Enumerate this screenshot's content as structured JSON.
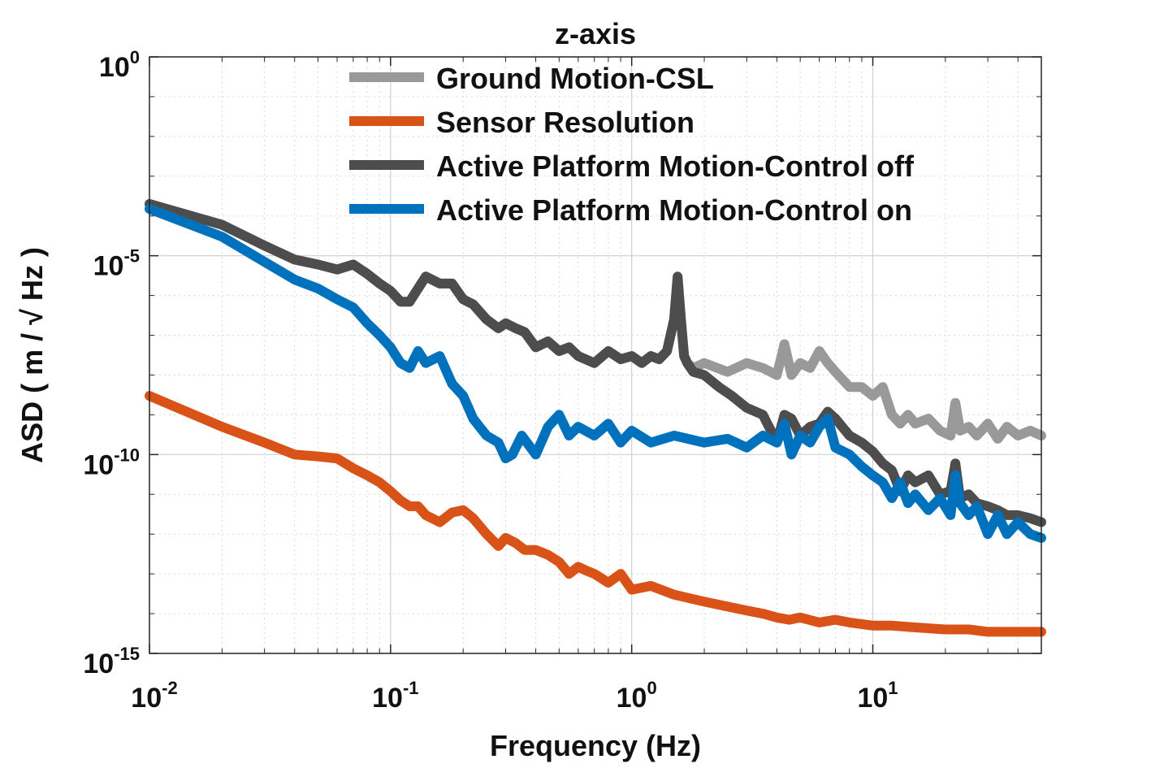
{
  "chart_data": {
    "type": "line",
    "title": "z-axis",
    "xlabel": "Frequency (Hz)",
    "ylabel": "ASD ( m / √ Hz )",
    "xscale": "log",
    "yscale": "log",
    "xlim": [
      0.01,
      50
    ],
    "ylim": [
      1e-15,
      1
    ],
    "grid": true,
    "legend_position": "top-center",
    "x_ticks": [
      {
        "value": 0.01,
        "base": "10",
        "exp": "-2"
      },
      {
        "value": 0.1,
        "base": "10",
        "exp": "-1"
      },
      {
        "value": 1,
        "base": "10",
        "exp": "0"
      },
      {
        "value": 10,
        "base": "10",
        "exp": "1"
      }
    ],
    "y_ticks": [
      {
        "value": 1,
        "base": "10",
        "exp": "0"
      },
      {
        "value": 1e-05,
        "base": "10",
        "exp": "-5"
      },
      {
        "value": 1e-10,
        "base": "10",
        "exp": "-10"
      },
      {
        "value": 1e-15,
        "base": "10",
        "exp": "-15"
      }
    ],
    "series": [
      {
        "name": "Ground Motion-CSL",
        "color": "#999999",
        "x": [
          0.01,
          0.02,
          0.03,
          0.04,
          0.05,
          0.06,
          0.07,
          0.08,
          0.09,
          0.1,
          0.11,
          0.12,
          0.13,
          0.14,
          0.16,
          0.18,
          0.2,
          0.22,
          0.25,
          0.28,
          0.3,
          0.33,
          0.36,
          0.4,
          0.45,
          0.5,
          0.55,
          0.6,
          0.7,
          0.8,
          0.9,
          1.0,
          1.1,
          1.2,
          1.3,
          1.4,
          1.5,
          1.55,
          1.6,
          1.65,
          1.7,
          1.8,
          2.0,
          2.5,
          3.0,
          3.5,
          4.0,
          4.3,
          4.6,
          5.0,
          5.5,
          6.0,
          6.5,
          7.0,
          8.0,
          9.0,
          10.0,
          11.0,
          12.0,
          13.0,
          14.0,
          15.0,
          17.0,
          19.0,
          21.0,
          22.0,
          23.0,
          25.0,
          27.0,
          30.0,
          33.0,
          36.0,
          40.0,
          45.0,
          50.0
        ],
        "y": [
          0.0002,
          6e-05,
          1.8e-05,
          8e-06,
          6e-06,
          4.5e-06,
          6e-06,
          3.5e-06,
          2e-06,
          1.3e-06,
          7e-07,
          7e-07,
          1.5e-06,
          3e-06,
          2e-06,
          2e-06,
          8e-07,
          6e-07,
          2.5e-07,
          1.5e-07,
          2e-07,
          1.5e-07,
          1.2e-07,
          5e-08,
          7e-08,
          4e-08,
          5e-08,
          3e-08,
          2e-08,
          4e-08,
          2.5e-08,
          3e-08,
          2e-08,
          3e-08,
          2.5e-08,
          4e-08,
          2.5e-07,
          3e-06,
          2.5e-07,
          3e-08,
          2e-08,
          1.5e-08,
          2e-08,
          1.2e-08,
          2e-08,
          1.5e-08,
          1e-08,
          6e-08,
          1e-08,
          2e-08,
          1.5e-08,
          4e-08,
          2e-08,
          1.2e-08,
          5e-09,
          5e-09,
          3e-09,
          5e-09,
          1e-09,
          6e-10,
          1e-09,
          6e-10,
          8e-10,
          4e-10,
          3e-10,
          2e-09,
          4e-10,
          5e-10,
          3e-10,
          6e-10,
          2.5e-10,
          5e-10,
          3e-10,
          4e-10,
          3e-10
        ]
      },
      {
        "name": "Sensor Resolution",
        "color": "#D95319",
        "x": [
          0.01,
          0.02,
          0.03,
          0.04,
          0.05,
          0.06,
          0.07,
          0.08,
          0.09,
          0.1,
          0.11,
          0.12,
          0.13,
          0.14,
          0.16,
          0.18,
          0.2,
          0.22,
          0.25,
          0.28,
          0.3,
          0.33,
          0.36,
          0.4,
          0.45,
          0.5,
          0.55,
          0.6,
          0.65,
          0.7,
          0.8,
          0.9,
          1.0,
          1.2,
          1.5,
          2.0,
          2.5,
          3.0,
          3.5,
          4.0,
          4.5,
          5.0,
          6.0,
          7.0,
          8.0,
          10.0,
          12.0,
          15.0,
          20.0,
          25.0,
          30.0,
          40.0,
          50.0
        ],
        "y": [
          3e-09,
          5e-10,
          2e-10,
          1e-10,
          9e-11,
          8e-11,
          4.5e-11,
          3e-11,
          2e-11,
          1.2e-11,
          7e-12,
          5e-12,
          5e-12,
          3e-12,
          2e-12,
          3.5e-12,
          4e-12,
          2.5e-12,
          1e-12,
          5e-13,
          8e-13,
          6e-13,
          4e-13,
          4e-13,
          3e-13,
          2e-13,
          1e-13,
          1.5e-13,
          1.2e-13,
          1e-13,
          6e-14,
          1e-13,
          4e-14,
          5e-14,
          3e-14,
          2e-14,
          1.5e-14,
          1.2e-14,
          1e-14,
          8e-15,
          7e-15,
          8e-15,
          6e-15,
          7e-15,
          6e-15,
          5e-15,
          5e-15,
          4.5e-15,
          4e-15,
          4e-15,
          3.5e-15,
          3.5e-15,
          3.5e-15
        ]
      },
      {
        "name": "Active Platform Motion-Control off",
        "color": "#4D4D4D",
        "x": [
          0.01,
          0.02,
          0.03,
          0.04,
          0.05,
          0.06,
          0.07,
          0.08,
          0.09,
          0.1,
          0.11,
          0.12,
          0.13,
          0.14,
          0.16,
          0.18,
          0.2,
          0.22,
          0.25,
          0.28,
          0.3,
          0.33,
          0.36,
          0.4,
          0.45,
          0.5,
          0.55,
          0.6,
          0.7,
          0.8,
          0.9,
          1.0,
          1.1,
          1.2,
          1.3,
          1.4,
          1.5,
          1.55,
          1.6,
          1.65,
          1.7,
          1.8,
          2.0,
          2.3,
          2.6,
          3.0,
          3.5,
          4.0,
          4.3,
          4.6,
          5.0,
          5.5,
          6.0,
          6.5,
          7.0,
          8.0,
          9.0,
          10.0,
          11.0,
          12.0,
          13.0,
          14.0,
          15.0,
          17.0,
          19.0,
          21.0,
          22.0,
          23.0,
          25.0,
          27.0,
          30.0,
          33.0,
          36.0,
          40.0,
          45.0,
          50.0
        ],
        "y": [
          0.0002,
          6e-05,
          1.8e-05,
          8e-06,
          6e-06,
          4.5e-06,
          6e-06,
          3.5e-06,
          2e-06,
          1.3e-06,
          7e-07,
          7e-07,
          1.5e-06,
          3e-06,
          2e-06,
          2e-06,
          8e-07,
          6e-07,
          2.5e-07,
          1.5e-07,
          2e-07,
          1.5e-07,
          1.2e-07,
          5e-08,
          7e-08,
          4e-08,
          5e-08,
          3e-08,
          2e-08,
          4e-08,
          2.5e-08,
          3e-08,
          2e-08,
          3e-08,
          2.5e-08,
          4e-08,
          2.5e-07,
          3e-06,
          2.5e-07,
          3e-08,
          2e-08,
          1.2e-08,
          1e-08,
          5e-09,
          3e-09,
          1.5e-09,
          1e-09,
          2e-10,
          1e-09,
          8e-10,
          3e-10,
          5e-10,
          6e-10,
          1.2e-09,
          8e-10,
          3e-10,
          2e-10,
          1.2e-10,
          6e-11,
          4e-11,
          1.2e-11,
          3e-11,
          2e-11,
          3e-11,
          1e-11,
          1.2e-11,
          6e-11,
          8e-12,
          1e-11,
          6e-12,
          5e-12,
          4e-12,
          3e-12,
          3e-12,
          2.5e-12,
          2e-12
        ]
      },
      {
        "name": "Active Platform Motion-Control on",
        "color": "#0072BD",
        "x": [
          0.01,
          0.02,
          0.03,
          0.04,
          0.05,
          0.06,
          0.07,
          0.08,
          0.09,
          0.1,
          0.11,
          0.12,
          0.13,
          0.14,
          0.16,
          0.18,
          0.2,
          0.22,
          0.25,
          0.28,
          0.3,
          0.32,
          0.35,
          0.4,
          0.45,
          0.5,
          0.55,
          0.6,
          0.7,
          0.8,
          0.9,
          1.0,
          1.2,
          1.5,
          2.0,
          2.5,
          3.0,
          3.5,
          4.0,
          4.3,
          4.6,
          5.0,
          5.5,
          6.0,
          6.5,
          7.0,
          8.0,
          9.0,
          10.0,
          11.0,
          12.0,
          13.0,
          14.0,
          15.0,
          17.0,
          19.0,
          21.0,
          22.0,
          23.0,
          25.0,
          27.0,
          30.0,
          33.0,
          36.0,
          40.0,
          45.0,
          50.0
        ],
        "y": [
          0.00015,
          3e-05,
          7e-06,
          2.5e-06,
          1.5e-06,
          8e-07,
          5e-07,
          2e-07,
          1e-07,
          5e-08,
          2e-08,
          1.5e-08,
          4e-08,
          2e-08,
          3e-08,
          6e-09,
          3e-09,
          8e-10,
          3e-10,
          2e-10,
          8e-11,
          1e-10,
          3e-10,
          1e-10,
          5e-10,
          1e-09,
          3e-10,
          5e-10,
          3e-10,
          6e-10,
          2e-10,
          4e-10,
          2e-10,
          3e-10,
          2e-10,
          2.5e-10,
          1.5e-10,
          3e-10,
          2e-10,
          6e-10,
          1e-10,
          3e-10,
          2e-10,
          5e-10,
          8e-10,
          1.5e-10,
          1e-10,
          5e-11,
          3e-11,
          2e-11,
          8e-12,
          2e-11,
          6e-12,
          1e-11,
          4e-12,
          8e-12,
          3e-12,
          3e-11,
          6e-12,
          3e-12,
          5e-12,
          1e-12,
          3e-12,
          1e-12,
          2e-12,
          1e-12,
          8e-13
        ]
      }
    ]
  }
}
